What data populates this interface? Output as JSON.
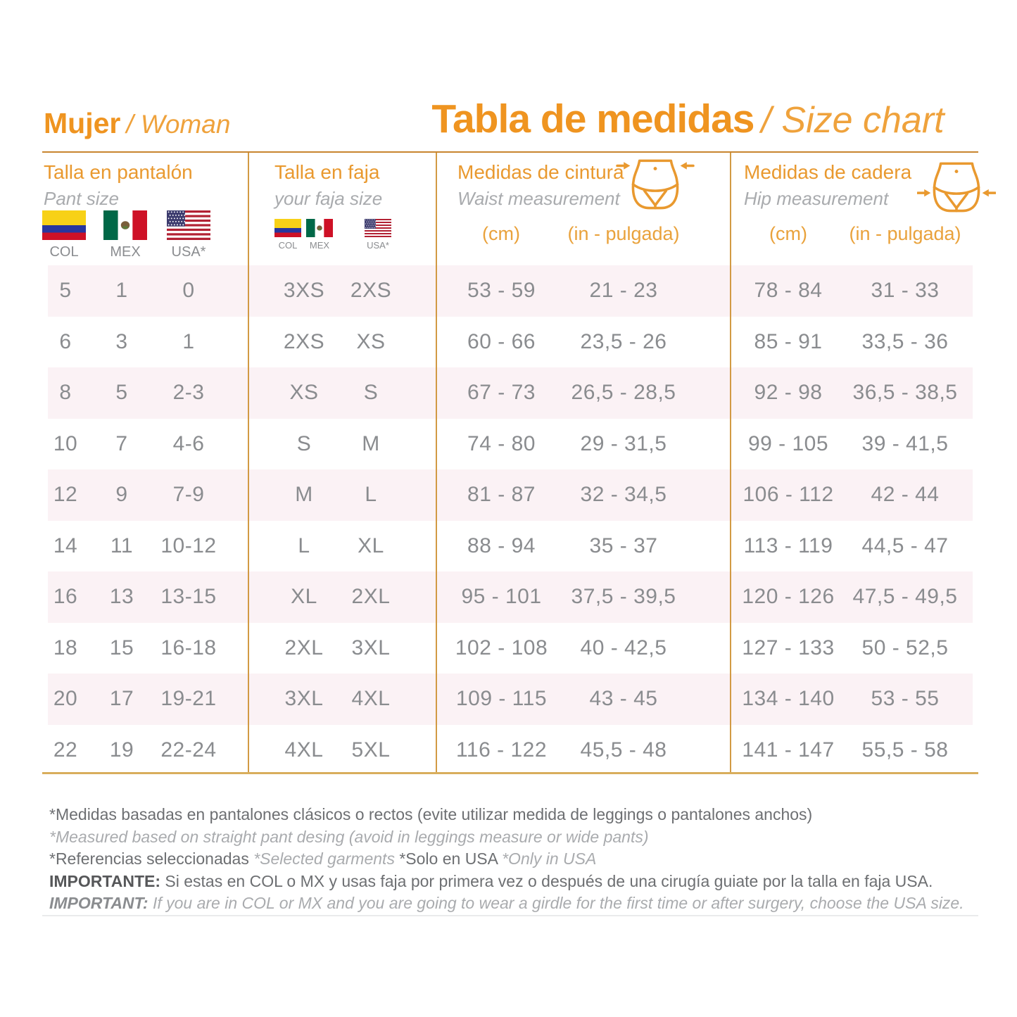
{
  "page": {
    "title_left_bold": "Mujer",
    "title_left_italic": "/ Woman",
    "title_center_bold": "Tabla de medidas",
    "title_center_italic": "/ Size chart"
  },
  "groups": [
    {
      "title": "Talla en pantalón",
      "subtitle": "Pant size",
      "flags": [
        {
          "icon": "colombia-flag",
          "label": "COL"
        },
        {
          "icon": "mexico-flag",
          "label": "MEX"
        },
        {
          "icon": "usa-flag",
          "label": "USA*"
        }
      ]
    },
    {
      "title": "Talla en faja",
      "subtitle": "your faja size",
      "flags": [
        {
          "icon": "colombia-flag",
          "label": "COL"
        },
        {
          "icon": "mexico-flag",
          "label": "MEX"
        },
        {
          "icon": "usa-flag",
          "label": "USA*"
        }
      ]
    },
    {
      "title": "Medidas de cintura",
      "subtitle": "Waist measurement",
      "icon": "waist-measurement-icon",
      "units": {
        "cm": "(cm)",
        "inch": "(in - pulgada)"
      }
    },
    {
      "title": "Medidas de cadera",
      "subtitle": "Hip measurement",
      "icon": "hip-measurement-icon",
      "units": {
        "cm": "(cm)",
        "inch": "(in - pulgada)"
      }
    }
  ],
  "columns": [
    "pant_col",
    "pant_mex",
    "pant_usa",
    "faja_col_mex",
    "faja_usa",
    "waist_cm",
    "waist_in",
    "hip_cm",
    "hip_in"
  ],
  "rows": [
    [
      "5",
      "1",
      "0",
      "3XS",
      "2XS",
      "53 - 59",
      "21 - 23",
      "78 - 84",
      "31 - 33"
    ],
    [
      "6",
      "3",
      "1",
      "2XS",
      "XS",
      "60 - 66",
      "23,5 - 26",
      "85 - 91",
      "33,5 - 36"
    ],
    [
      "8",
      "5",
      "2-3",
      "XS",
      "S",
      "67 - 73",
      "26,5 - 28,5",
      "92 - 98",
      "36,5 - 38,5"
    ],
    [
      "10",
      "7",
      "4-6",
      "S",
      "M",
      "74 - 80",
      "29 - 31,5",
      "99 - 105",
      "39 - 41,5"
    ],
    [
      "12",
      "9",
      "7-9",
      "M",
      "L",
      "81 - 87",
      "32 - 34,5",
      "106 - 112",
      "42 - 44"
    ],
    [
      "14",
      "11",
      "10-12",
      "L",
      "XL",
      "88 - 94",
      "35 - 37",
      "113 - 119",
      "44,5 - 47"
    ],
    [
      "16",
      "13",
      "13-15",
      "XL",
      "2XL",
      "95 - 101",
      "37,5 - 39,5",
      "120 - 126",
      "47,5 - 49,5"
    ],
    [
      "18",
      "15",
      "16-18",
      "2XL",
      "3XL",
      "102 - 108",
      "40 - 42,5",
      "127 - 133",
      "50 - 52,5"
    ],
    [
      "20",
      "17",
      "19-21",
      "3XL",
      "4XL",
      "109 - 115",
      "43 - 45",
      "134 - 140",
      "53 - 55"
    ],
    [
      "22",
      "19",
      "22-24",
      "4XL",
      "5XL",
      "116 - 122",
      "45,5 - 48",
      "141 - 147",
      "55,5 - 58"
    ]
  ],
  "notes": [
    [
      {
        "t": "*Medidas basadas en pantalones clásicos o rectos (evite utilizar medida de leggings o pantalones anchos)",
        "s": "dark"
      }
    ],
    [
      {
        "t": "*Measured based on straight pant desing (avoid in leggings measure or wide pants)",
        "s": "muted"
      }
    ],
    [
      {
        "t": "*Referencias seleccionadas ",
        "s": "dark"
      },
      {
        "t": "*Selected garments ",
        "s": "muted"
      },
      {
        "t": "*Solo en USA ",
        "s": "dark"
      },
      {
        "t": "*Only in USA",
        "s": "muted"
      }
    ],
    [
      {
        "t": "IMPORTANTE: ",
        "s": "bold"
      },
      {
        "t": "Si estas en COL o MX y usas faja por primera vez o después de una cirugía guiate por la talla en faja USA.",
        "s": "dark"
      }
    ],
    [
      {
        "t": "IMPORTANT: ",
        "s": "bolditalic"
      },
      {
        "t": "If you are in COL or MX and you are going to wear a girdle for the first time or after surgery, choose the USA size.",
        "s": "muted"
      }
    ]
  ],
  "colors": {
    "accent_orange": "#EF9420",
    "header_orange": "#E9992F",
    "table_text_gray": "#8A8C8F",
    "stripe_pink": "#FBF2F5",
    "divider_gold": "#D29A44",
    "bottom_rule_gold": "#D9AE5C",
    "note_dark": "#6D6F72",
    "note_muted": "#A9ABAE"
  }
}
